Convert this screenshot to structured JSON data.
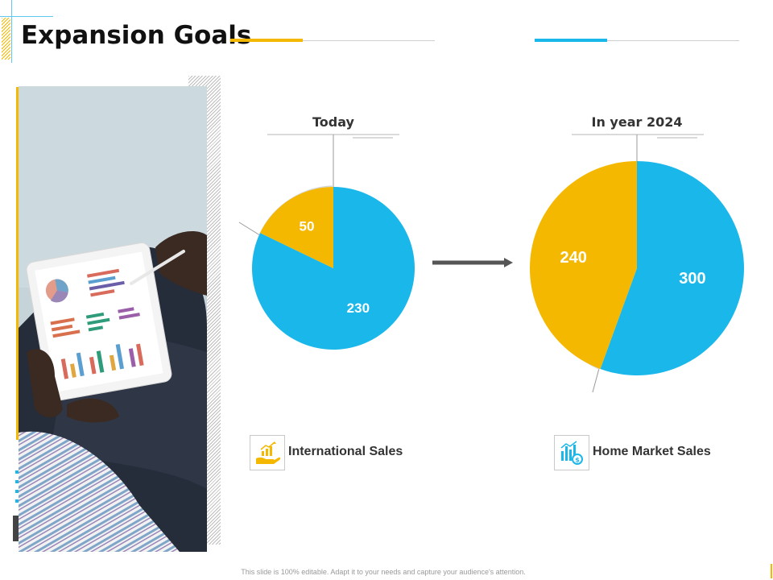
{
  "slide": {
    "title": "Expansion Goals",
    "footer": "This slide is 100% editable. Adapt it to your needs and capture your audience's attention."
  },
  "colors": {
    "blue": "#1ab7ea",
    "yellow": "#f5b800",
    "text": "#333333",
    "arrow": "#555555"
  },
  "photo": {
    "description_icon": "tablet-charts-photo-icon"
  },
  "chart_data": [
    {
      "type": "pie",
      "title": "Today",
      "categories": [
        "International Sales",
        "Home Market Sales"
      ],
      "values": [
        50,
        230
      ],
      "colors": [
        "#f5b800",
        "#1ab7ea"
      ]
    },
    {
      "type": "pie",
      "title": "In year 2024",
      "categories": [
        "International Sales",
        "Home Market Sales"
      ],
      "values": [
        240,
        300
      ],
      "colors": [
        "#f5b800",
        "#1ab7ea"
      ]
    }
  ],
  "legend": [
    {
      "label": "International Sales",
      "icon": "hand-growth-chart-icon",
      "color": "#f5b800"
    },
    {
      "label": "Home Market Sales",
      "icon": "bar-chart-coin-icon",
      "color": "#1ab7ea"
    }
  ]
}
